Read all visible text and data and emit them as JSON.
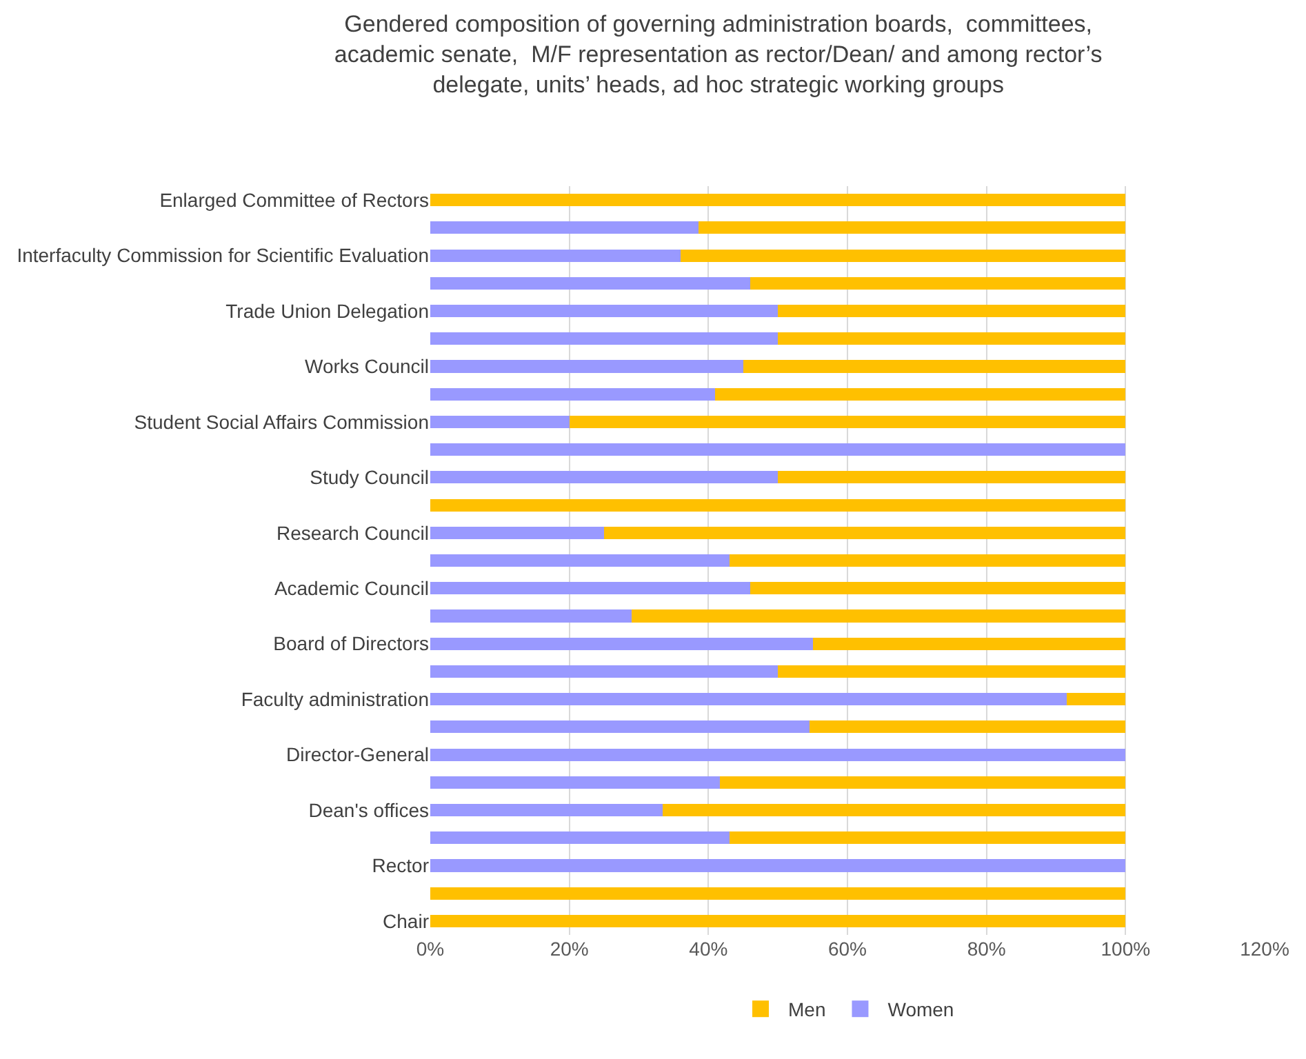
{
  "chart_data": {
    "type": "bar",
    "orientation": "horizontal",
    "stacked": true,
    "title": "Gendered composition of governing administration boards,  committees, academic senate,  M/F representation as rector/Dean/ and among rector’s delegate, units’ heads, ad hoc strategic working groups",
    "categories": [
      "Enlarged Committee of Rectors",
      null,
      "Interfaculty Commission for Scientific Evaluation",
      null,
      "Trade Union Delegation",
      null,
      "Works Council",
      null,
      "Student Social Affairs Commission",
      null,
      "Study Council",
      null,
      "Research Council",
      null,
      "Academic Council",
      null,
      "Board of Directors",
      null,
      "Faculty administration",
      null,
      "Director-General",
      null,
      "Dean's offices",
      null,
      "Rector",
      null,
      "Chair"
    ],
    "series": [
      {
        "name": "Women",
        "color": "#9999ff",
        "values": [
          0,
          38.6,
          36,
          46,
          50,
          50,
          45,
          41,
          20,
          100,
          50,
          0,
          25,
          43,
          46,
          29,
          55,
          50,
          91.5,
          54.5,
          100,
          41.7,
          33.4,
          43,
          100,
          0,
          0
        ]
      },
      {
        "name": "Men",
        "color": "#ffc000",
        "values": [
          100,
          61.4,
          64,
          54,
          50,
          50,
          55,
          59,
          80,
          0,
          50,
          100,
          75,
          57,
          54,
          71,
          45,
          50,
          8.5,
          45.5,
          0,
          58.3,
          66.6,
          57,
          0,
          100,
          100
        ]
      }
    ],
    "xlim": [
      0,
      120
    ],
    "xticks": [
      {
        "value": 0,
        "label": "0%"
      },
      {
        "value": 20,
        "label": "20%"
      },
      {
        "value": 40,
        "label": "40%"
      },
      {
        "value": 60,
        "label": "60%"
      },
      {
        "value": 80,
        "label": "80%"
      },
      {
        "value": 100,
        "label": "100%"
      },
      {
        "value": 120,
        "label": "120%"
      }
    ],
    "grid": "x",
    "legend": "bottom"
  }
}
